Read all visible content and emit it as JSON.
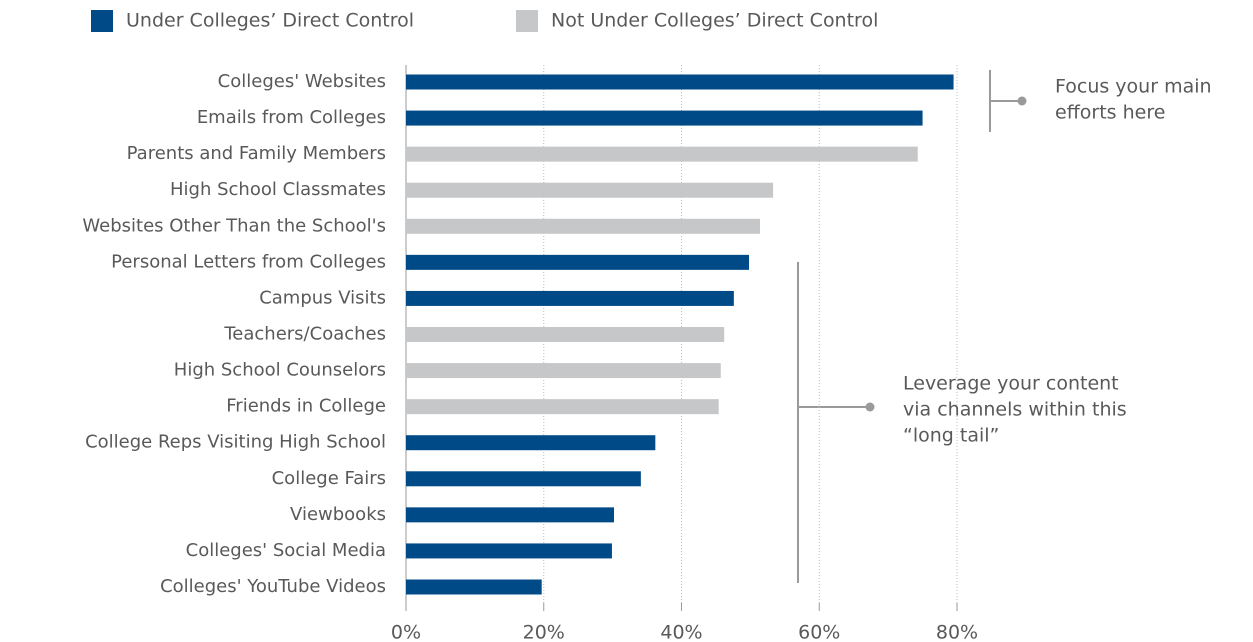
{
  "chart_data": {
    "type": "bar",
    "orientation": "horizontal",
    "categories": [
      "Colleges' Websites",
      "Emails from Colleges",
      "Parents and Family Members",
      "High School Classmates",
      "Websites Other Than the School's",
      "Personal Letters from Colleges",
      "Campus Visits",
      "Teachers/Coaches",
      "High School Counselors",
      "Friends in College",
      "College Reps Visiting High School",
      "College Fairs",
      "Viewbooks",
      "Colleges' Social Media",
      "Colleges' YouTube Videos"
    ],
    "series": [
      {
        "name": "Under Colleges’ Direct Control",
        "color": "#004a87",
        "values": [
          79.5,
          75,
          null,
          null,
          null,
          49.8,
          47.6,
          null,
          null,
          null,
          36.2,
          34.1,
          30.2,
          29.9,
          19.7
        ]
      },
      {
        "name": "Not Under Colleges’ Direct Control",
        "color": "#c5c7c9",
        "values": [
          null,
          null,
          74.3,
          53.3,
          51.4,
          null,
          null,
          46.2,
          45.7,
          45.4,
          null,
          null,
          null,
          null,
          null
        ]
      }
    ],
    "xlim": [
      0,
      80
    ],
    "xticks": [
      {
        "value": 0,
        "label": "0%"
      },
      {
        "value": 20,
        "label": "20%"
      },
      {
        "value": 40,
        "label": "40%"
      },
      {
        "value": 60,
        "label": "60%"
      },
      {
        "value": 80,
        "label": "80%"
      }
    ],
    "grid": true,
    "legend": "top",
    "annotations": [
      {
        "lines": [
          "Focus your main",
          "efforts here"
        ]
      },
      {
        "lines": [
          "Leverage your content",
          "via channels within this",
          "“long tail”"
        ]
      }
    ]
  }
}
